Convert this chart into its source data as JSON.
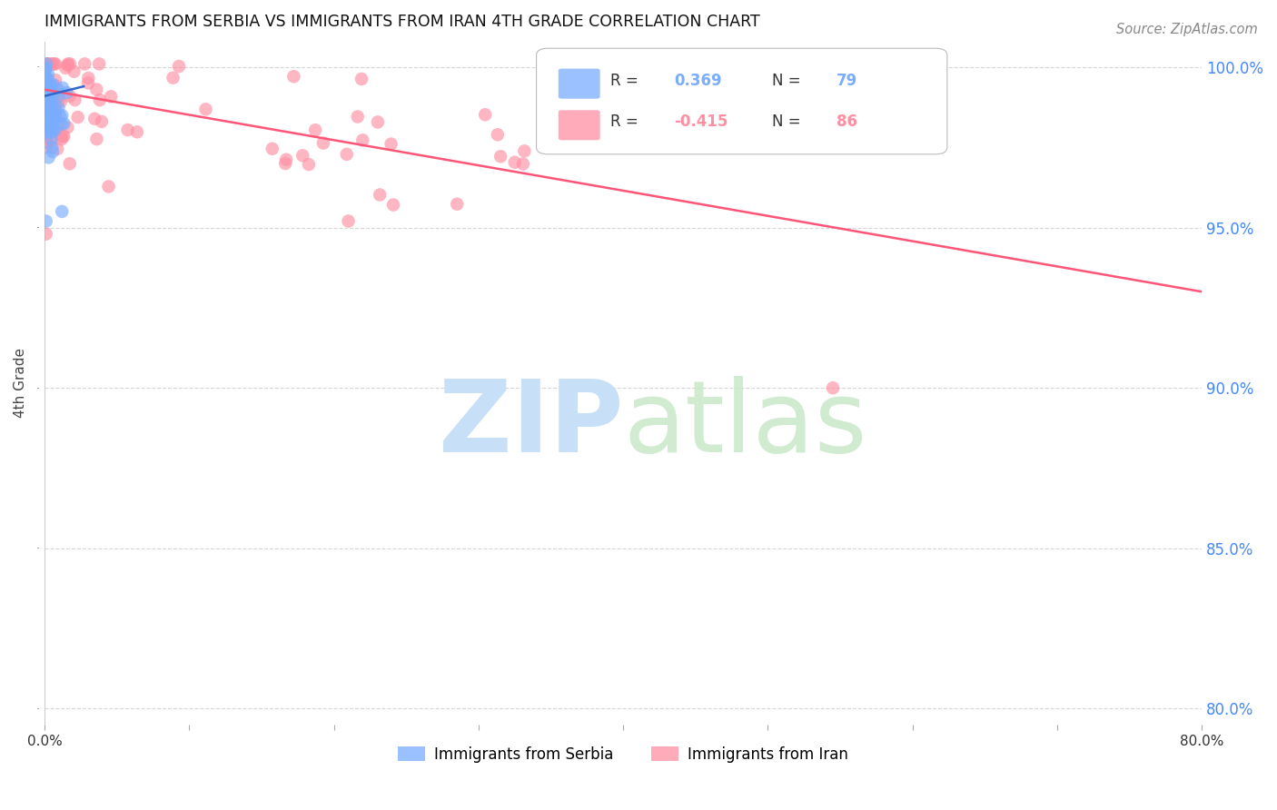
{
  "title": "IMMIGRANTS FROM SERBIA VS IMMIGRANTS FROM IRAN 4TH GRADE CORRELATION CHART",
  "source": "Source: ZipAtlas.com",
  "ylabel": "4th Grade",
  "xmin": 0.0,
  "xmax": 0.8,
  "ymin": 0.795,
  "ymax": 1.008,
  "serbia_R": 0.369,
  "serbia_N": 79,
  "iran_R": -0.415,
  "iran_N": 86,
  "serbia_color": "#7aadff",
  "iran_color": "#ff8fa3",
  "serbia_trend_color": "#3366cc",
  "iran_trend_color": "#ff5577",
  "yticks": [
    0.8,
    0.85,
    0.9,
    0.95,
    1.0
  ],
  "ytick_labels": [
    "80.0%",
    "85.0%",
    "90.0%",
    "95.0%",
    "100.0%"
  ],
  "watermark_zip_color": "#c8dff8",
  "watermark_atlas_color": "#c8e8c8"
}
